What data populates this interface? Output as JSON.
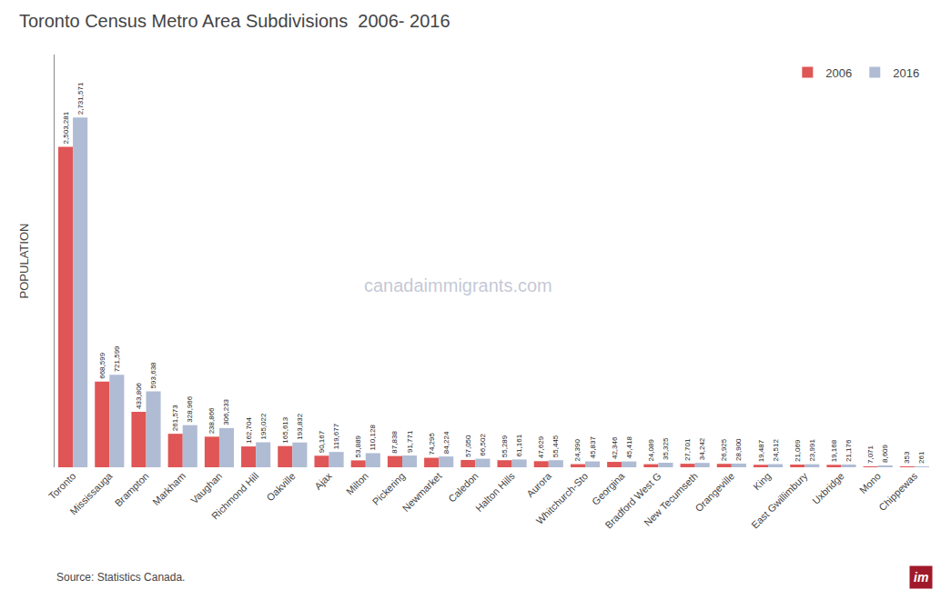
{
  "chart_data": {
    "type": "bar",
    "title": "Toronto Census Metro Area Subdivisions  2006- 2016",
    "ylabel": "POPULATION",
    "annotations": [
      "Source: Statistics Canada.",
      "canadaimmigrants.com",
      "im"
    ],
    "categories": [
      "Toronto",
      "Mississauga",
      "Brampton",
      "Markham",
      "Vaughan",
      "Richmond Hill",
      "Oakville",
      "Ajax",
      "Milton",
      "Pickering",
      "Newmarket",
      "Caledon",
      "Halton Hills",
      "Aurora",
      "Whitchurch-Sto",
      "Georgina",
      "Bradford West G",
      "New Tecumseth",
      "Orangeville",
      "King",
      "East Gwillimbury",
      "Uxbridge",
      "Mono",
      "Chippewas"
    ],
    "series": [
      {
        "name": "2006",
        "color": "#e05555",
        "values": [
          2503281,
          668599,
          433806,
          261573,
          238866,
          162704,
          165613,
          90167,
          53889,
          87838,
          74295,
          57050,
          55289,
          47629,
          24390,
          42346,
          24089,
          27701,
          26925,
          19487,
          21069,
          19168,
          7071,
          353
        ],
        "value_labels": [
          "2,503,281",
          "668,599",
          "433,806",
          "261,573",
          "238,866",
          "162,704",
          "165,613",
          "90,167",
          "53,889",
          "87,838",
          "74,295",
          "57,050",
          "55,289",
          "47,629",
          "24,390",
          "42,346",
          "24,089",
          "27,701",
          "26,925",
          "19,487",
          "21,069",
          "19,168",
          "7,071",
          "353"
        ]
      },
      {
        "name": "2016",
        "color": "#b0bcd4",
        "values": [
          2731571,
          721599,
          593638,
          328966,
          306233,
          195022,
          193832,
          119677,
          110128,
          91771,
          84224,
          66502,
          61161,
          55445,
          45837,
          45418,
          35325,
          34242,
          28900,
          24512,
          23991,
          21176,
          8609,
          261
        ],
        "value_labels": [
          "2,731,571",
          "721,599",
          "593,638",
          "328,966",
          "306,233",
          "195,022",
          "193,832",
          "119,677",
          "110,128",
          "91,771",
          "84,224",
          "66,502",
          "61,161",
          "55,445",
          "45,837",
          "45,418",
          "35,325",
          "34,242",
          "28,900",
          "24,512",
          "23,991",
          "21,176",
          "8,609",
          "261"
        ]
      }
    ],
    "ylim": [
      0,
      3223253.78
    ],
    "yticks": [],
    "tick_labels": "x",
    "grid": false,
    "data_labels": true,
    "legend": "upper right"
  }
}
